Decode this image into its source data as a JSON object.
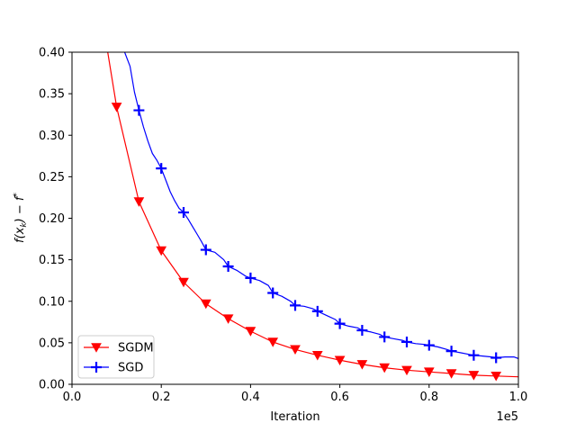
{
  "chart_data": {
    "type": "line",
    "title": "",
    "xlabel": "Iteration",
    "ylabel": "f(x_k) − f*",
    "x_offset_label": "1e5",
    "xlim": [
      0,
      1.0
    ],
    "ylim": [
      0,
      0.4
    ],
    "x_ticks": [
      0,
      0.2,
      0.4,
      0.6,
      0.8,
      1.0
    ],
    "x_tick_labels": [
      "0.0",
      "0.2",
      "0.4",
      "0.6",
      "0.8",
      "1.0"
    ],
    "y_ticks": [
      0,
      0.05,
      0.1,
      0.15,
      0.2,
      0.25,
      0.3,
      0.35,
      0.4
    ],
    "y_tick_labels": [
      "0.00",
      "0.05",
      "0.10",
      "0.15",
      "0.20",
      "0.25",
      "0.30",
      "0.35",
      "0.40"
    ],
    "grid": false,
    "legend_position": "lower-left",
    "series": [
      {
        "name": "SGDM",
        "color": "#ff0000",
        "marker": "triangle-down",
        "x": [
          0.08,
          0.1,
          0.15,
          0.2,
          0.25,
          0.3,
          0.35,
          0.4,
          0.45,
          0.5,
          0.55,
          0.6,
          0.65,
          0.7,
          0.75,
          0.8,
          0.85,
          0.9,
          0.95,
          1.0
        ],
        "y": [
          0.4,
          0.334,
          0.22,
          0.161,
          0.123,
          0.097,
          0.079,
          0.064,
          0.051,
          0.042,
          0.035,
          0.029,
          0.024,
          0.02,
          0.017,
          0.015,
          0.013,
          0.011,
          0.01,
          0.009
        ],
        "marker_x": [
          0.1,
          0.15,
          0.2,
          0.25,
          0.3,
          0.35,
          0.4,
          0.45,
          0.5,
          0.55,
          0.6,
          0.65,
          0.7,
          0.75,
          0.8,
          0.85,
          0.9,
          0.95
        ],
        "marker_y": [
          0.334,
          0.22,
          0.161,
          0.123,
          0.097,
          0.079,
          0.064,
          0.051,
          0.042,
          0.035,
          0.029,
          0.024,
          0.02,
          0.017,
          0.015,
          0.013,
          0.011,
          0.01
        ]
      },
      {
        "name": "SGD",
        "color": "#0000ff",
        "marker": "plus",
        "x": [
          0.118,
          0.13,
          0.14,
          0.15,
          0.16,
          0.17,
          0.18,
          0.19,
          0.2,
          0.21,
          0.22,
          0.23,
          0.24,
          0.25,
          0.26,
          0.27,
          0.28,
          0.29,
          0.3,
          0.32,
          0.34,
          0.35,
          0.37,
          0.39,
          0.4,
          0.42,
          0.44,
          0.45,
          0.47,
          0.49,
          0.5,
          0.52,
          0.54,
          0.55,
          0.57,
          0.59,
          0.6,
          0.62,
          0.64,
          0.65,
          0.67,
          0.69,
          0.7,
          0.72,
          0.74,
          0.75,
          0.77,
          0.79,
          0.8,
          0.82,
          0.84,
          0.85,
          0.87,
          0.89,
          0.9,
          0.92,
          0.94,
          0.95,
          0.97,
          0.99,
          1.0
        ],
        "y": [
          0.4,
          0.383,
          0.352,
          0.33,
          0.31,
          0.293,
          0.278,
          0.27,
          0.26,
          0.246,
          0.232,
          0.221,
          0.212,
          0.207,
          0.199,
          0.19,
          0.181,
          0.172,
          0.162,
          0.159,
          0.15,
          0.142,
          0.137,
          0.13,
          0.128,
          0.125,
          0.119,
          0.11,
          0.106,
          0.1,
          0.095,
          0.094,
          0.091,
          0.088,
          0.083,
          0.078,
          0.073,
          0.07,
          0.068,
          0.065,
          0.063,
          0.06,
          0.057,
          0.055,
          0.053,
          0.051,
          0.049,
          0.048,
          0.047,
          0.045,
          0.042,
          0.04,
          0.038,
          0.036,
          0.035,
          0.034,
          0.033,
          0.032,
          0.033,
          0.033,
          0.031
        ],
        "marker_x": [
          0.15,
          0.2,
          0.25,
          0.3,
          0.35,
          0.4,
          0.45,
          0.5,
          0.55,
          0.6,
          0.65,
          0.7,
          0.75,
          0.8,
          0.85,
          0.9,
          0.95
        ],
        "marker_y": [
          0.33,
          0.26,
          0.207,
          0.162,
          0.142,
          0.128,
          0.11,
          0.095,
          0.088,
          0.073,
          0.065,
          0.057,
          0.051,
          0.047,
          0.04,
          0.035,
          0.032
        ]
      }
    ]
  }
}
